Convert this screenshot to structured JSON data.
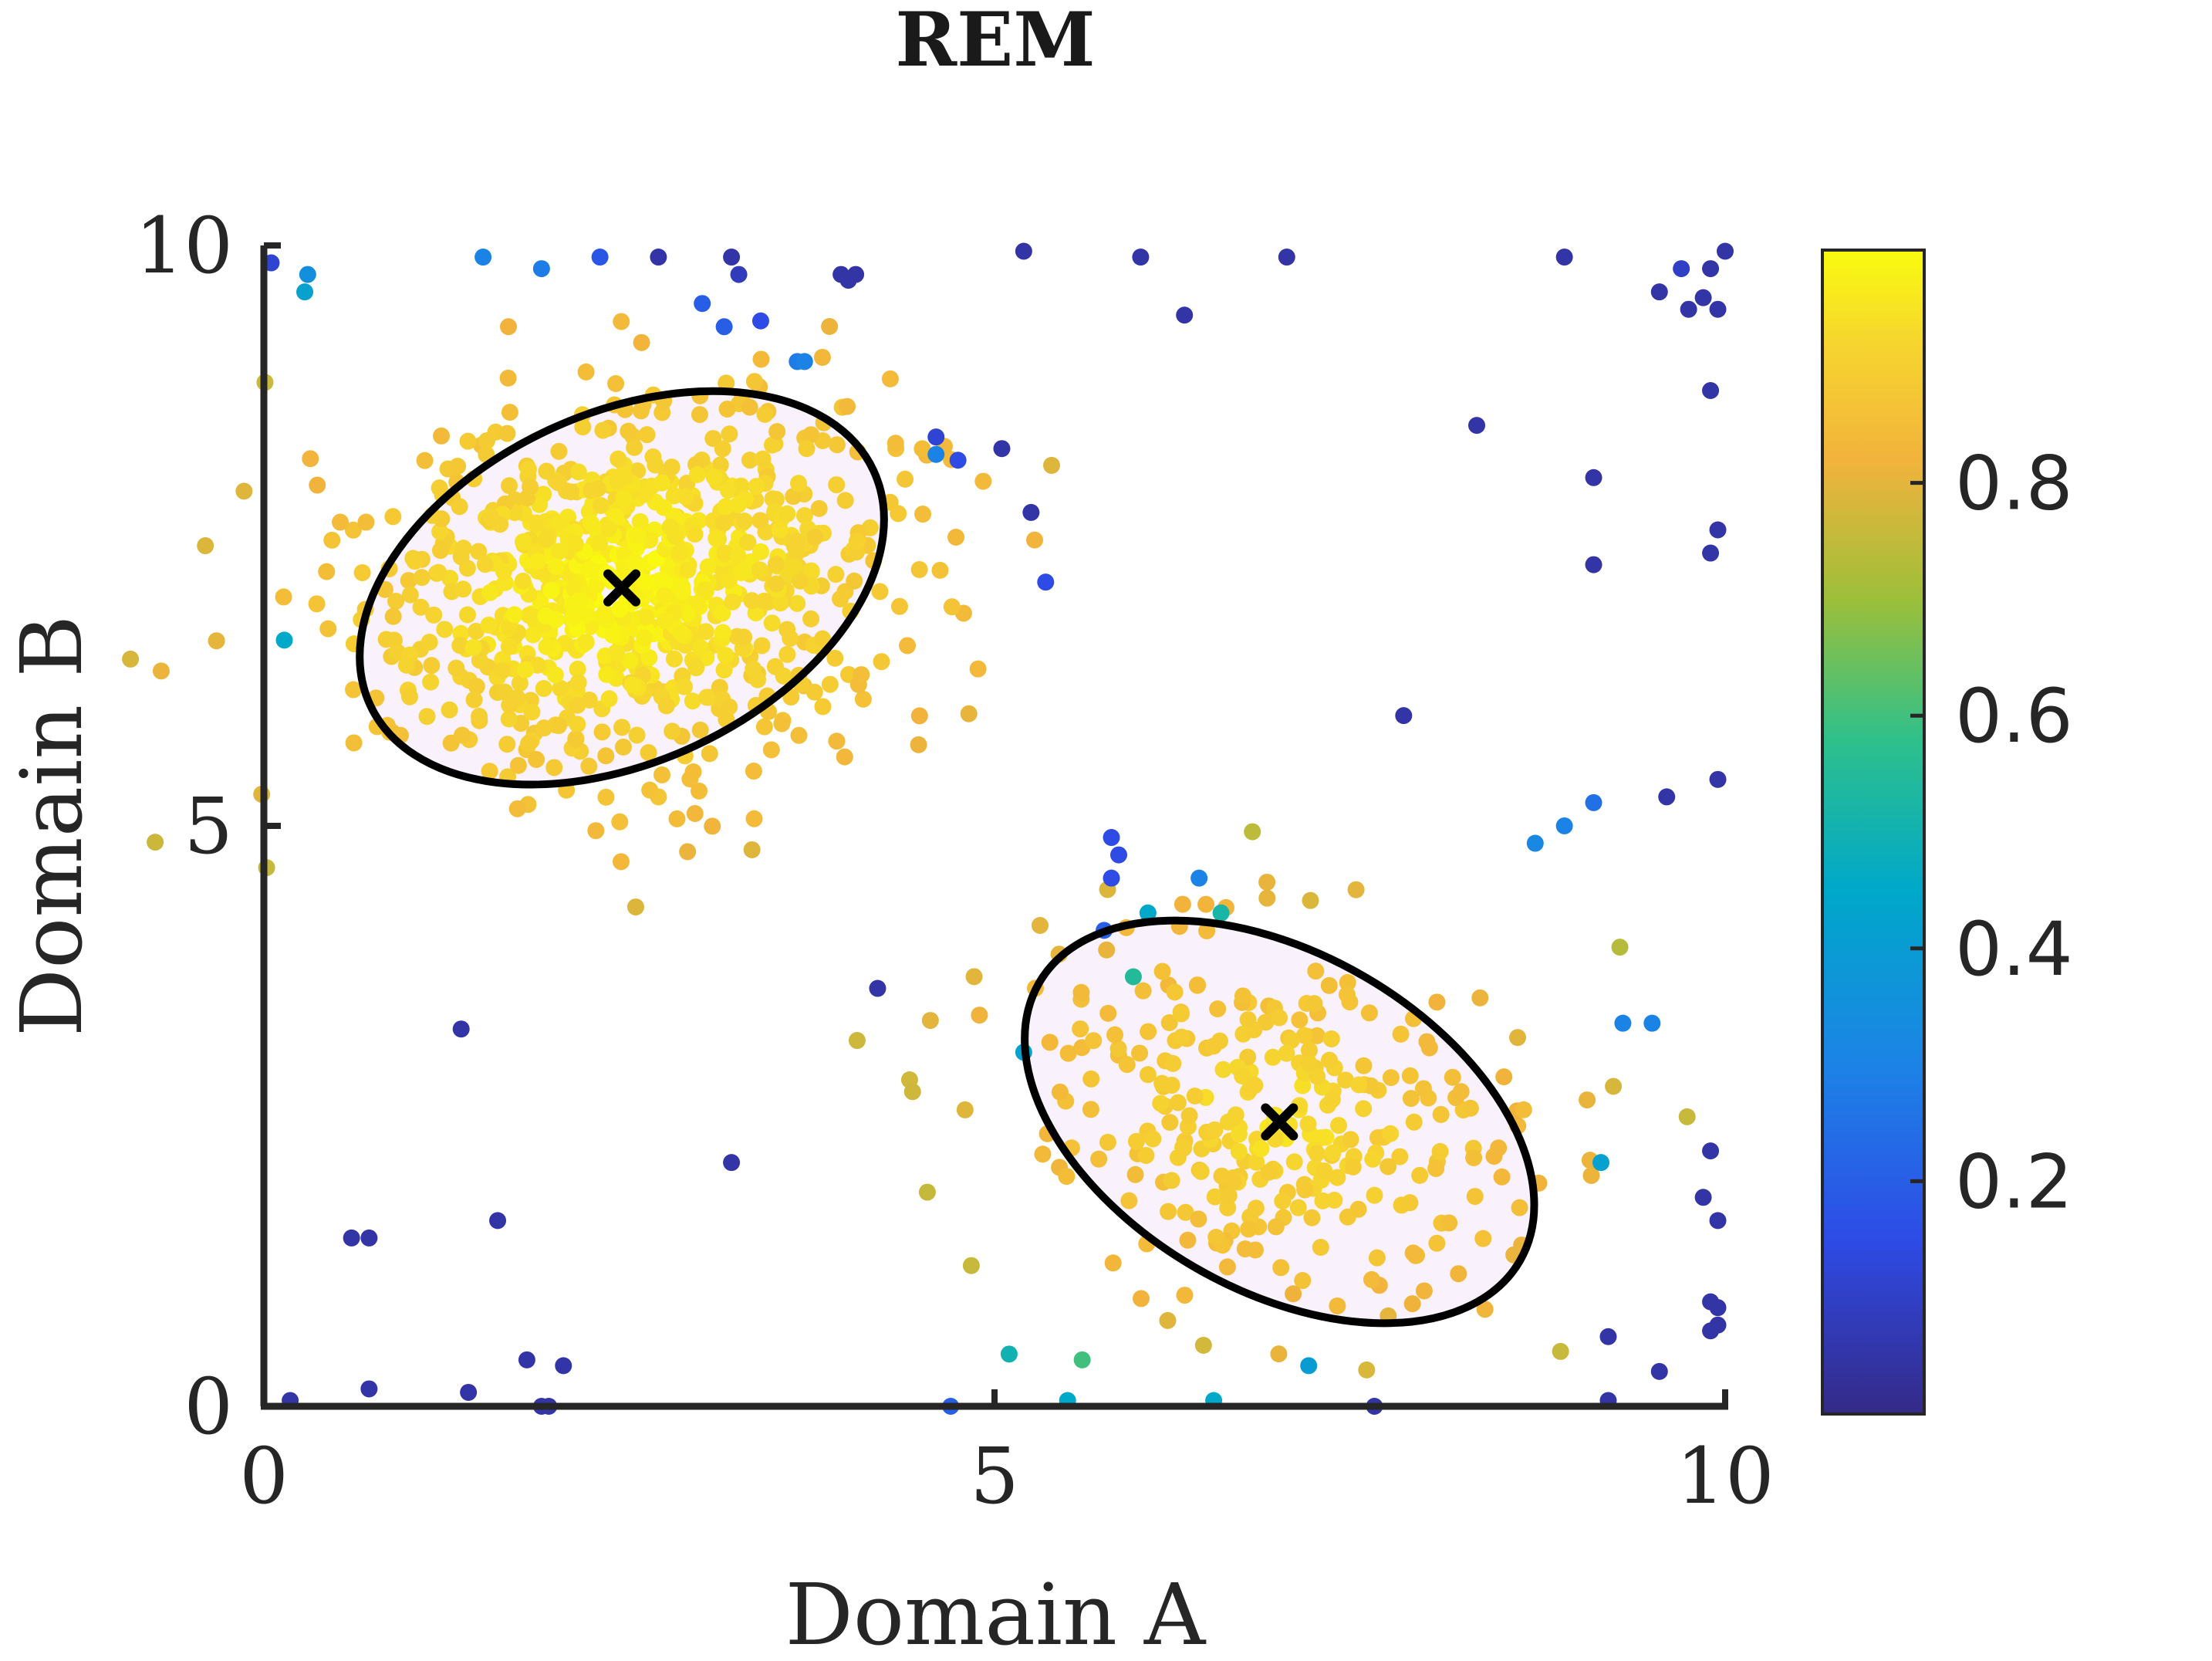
{
  "chart_data": {
    "type": "scatter",
    "title": "REM",
    "xlabel": "Domain A",
    "ylabel": "Domain B",
    "xlim": [
      0,
      10
    ],
    "ylim": [
      0,
      10
    ],
    "xticks": [
      "0",
      "5",
      "10"
    ],
    "yticks": [
      "0",
      "5",
      "10"
    ],
    "grid": false,
    "colorbar": {
      "range": [
        0,
        1
      ],
      "ticks": [
        "0.2",
        "0.4",
        "0.6",
        "0.8"
      ],
      "colormap": "parula",
      "placement": "right"
    },
    "clusters": [
      {
        "center": [
          2.45,
          7.05
        ],
        "ellipse": {
          "rx": 1.9,
          "ry": 1.5,
          "angle_deg": -25
        }
      },
      {
        "center": [
          6.95,
          2.45
        ],
        "ellipse": {
          "rx": 1.9,
          "ry": 1.45,
          "angle_deg": 30
        }
      }
    ],
    "outlier_points": [
      [
        0.05,
        9.85,
        0.12
      ],
      [
        0.3,
        9.75,
        0.35
      ],
      [
        0.28,
        9.6,
        0.42
      ],
      [
        1.5,
        9.9,
        0.3
      ],
      [
        1.9,
        9.8,
        0.28
      ],
      [
        2.3,
        9.9,
        0.18
      ],
      [
        2.7,
        9.9,
        0.05
      ],
      [
        3.2,
        9.9,
        0.05
      ],
      [
        3.25,
        9.75,
        0.08
      ],
      [
        3.0,
        9.5,
        0.2
      ],
      [
        3.15,
        9.3,
        0.2
      ],
      [
        3.4,
        9.35,
        0.15
      ],
      [
        3.65,
        9.0,
        0.28
      ],
      [
        3.7,
        9.0,
        0.3
      ],
      [
        3.95,
        9.75,
        0.05
      ],
      [
        4.0,
        9.7,
        0.05
      ],
      [
        4.05,
        9.75,
        0.05
      ],
      [
        5.2,
        9.95,
        0.05
      ],
      [
        6.0,
        9.9,
        0.05
      ],
      [
        7.0,
        9.9,
        0.05
      ],
      [
        8.9,
        9.9,
        0.05
      ],
      [
        9.7,
        9.8,
        0.1
      ],
      [
        9.9,
        9.8,
        0.05
      ],
      [
        10.0,
        9.95,
        0.05
      ],
      [
        9.55,
        9.6,
        0.05
      ],
      [
        9.75,
        9.45,
        0.05
      ],
      [
        9.85,
        9.55,
        0.05
      ],
      [
        9.95,
        9.45,
        0.05
      ],
      [
        6.3,
        9.4,
        0.05
      ],
      [
        9.9,
        8.75,
        0.05
      ],
      [
        8.3,
        8.45,
        0.05
      ],
      [
        9.1,
        8.0,
        0.05
      ],
      [
        9.95,
        7.55,
        0.05
      ],
      [
        9.9,
        7.35,
        0.05
      ],
      [
        9.1,
        7.25,
        0.05
      ],
      [
        4.6,
        8.2,
        0.3
      ],
      [
        4.6,
        8.35,
        0.12
      ],
      [
        4.75,
        8.15,
        0.15
      ],
      [
        5.05,
        8.25,
        0.05
      ],
      [
        5.25,
        7.7,
        0.05
      ],
      [
        5.35,
        7.1,
        0.15
      ],
      [
        7.8,
        5.95,
        0.05
      ],
      [
        9.95,
        5.4,
        0.05
      ],
      [
        9.6,
        5.25,
        0.05
      ],
      [
        9.1,
        5.2,
        0.25
      ],
      [
        8.9,
        5.0,
        0.3
      ],
      [
        8.7,
        4.85,
        0.32
      ],
      [
        5.8,
        4.9,
        0.15
      ],
      [
        5.85,
        4.75,
        0.15
      ],
      [
        5.8,
        4.55,
        0.15
      ],
      [
        5.75,
        4.1,
        0.2
      ],
      [
        4.2,
        3.6,
        0.05
      ],
      [
        1.35,
        3.25,
        0.05
      ],
      [
        3.2,
        2.1,
        0.05
      ],
      [
        1.6,
        1.6,
        0.05
      ],
      [
        0.6,
        1.45,
        0.05
      ],
      [
        0.72,
        1.45,
        0.05
      ],
      [
        1.8,
        0.4,
        0.05
      ],
      [
        2.05,
        0.35,
        0.05
      ],
      [
        0.72,
        0.15,
        0.05
      ],
      [
        1.4,
        0.12,
        0.05
      ],
      [
        0.18,
        0.05,
        0.05
      ],
      [
        1.9,
        0.0,
        0.05
      ],
      [
        1.95,
        0.0,
        0.05
      ],
      [
        4.7,
        0.0,
        0.2
      ],
      [
        9.55,
        0.3,
        0.05
      ],
      [
        9.2,
        0.6,
        0.05
      ],
      [
        9.2,
        0.05,
        0.05
      ],
      [
        9.9,
        0.9,
        0.05
      ],
      [
        9.95,
        0.85,
        0.05
      ],
      [
        9.95,
        0.7,
        0.05
      ],
      [
        9.9,
        0.65,
        0.05
      ],
      [
        9.95,
        1.6,
        0.05
      ],
      [
        9.85,
        1.8,
        0.05
      ],
      [
        9.9,
        2.2,
        0.05
      ],
      [
        9.3,
        3.3,
        0.3
      ],
      [
        9.5,
        3.3,
        0.3
      ],
      [
        9.15,
        2.1,
        0.42
      ],
      [
        7.6,
        0.0,
        0.05
      ],
      [
        7.15,
        0.35,
        0.4
      ],
      [
        6.5,
        0.05,
        0.45
      ],
      [
        5.5,
        0.05,
        0.45
      ],
      [
        5.6,
        0.4,
        0.6
      ],
      [
        5.1,
        0.45,
        0.5
      ],
      [
        5.2,
        3.05,
        0.42
      ],
      [
        0.14,
        6.6,
        0.45
      ],
      [
        6.4,
        4.55,
        0.3
      ],
      [
        6.05,
        4.25,
        0.45
      ],
      [
        6.55,
        4.25,
        0.52
      ],
      [
        5.95,
        3.7,
        0.55
      ]
    ]
  }
}
